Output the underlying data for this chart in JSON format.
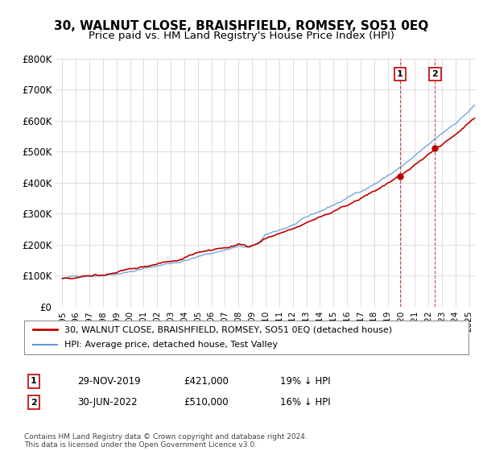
{
  "title": "30, WALNUT CLOSE, BRAISHFIELD, ROMSEY, SO51 0EQ",
  "subtitle": "Price paid vs. HM Land Registry's House Price Index (HPI)",
  "ylabel": "",
  "ylim": [
    0,
    800000
  ],
  "yticks": [
    0,
    100000,
    200000,
    300000,
    400000,
    500000,
    600000,
    700000,
    800000
  ],
  "ytick_labels": [
    "£0",
    "£100K",
    "£200K",
    "£300K",
    "£400K",
    "£500K",
    "£600K",
    "£700K",
    "£800K"
  ],
  "hpi_color": "#5b9bd5",
  "price_color": "#c00000",
  "marker1_date": 2019.91,
  "marker1_value": 421000,
  "marker1_label": "1",
  "marker2_date": 2022.5,
  "marker2_value": 510000,
  "marker2_label": "2",
  "legend_line1": "30, WALNUT CLOSE, BRAISHFIELD, ROMSEY, SO51 0EQ (detached house)",
  "legend_line2": "HPI: Average price, detached house, Test Valley",
  "table_row1": [
    "1",
    "29-NOV-2019",
    "£421,000",
    "19% ↓ HPI"
  ],
  "table_row2": [
    "2",
    "30-JUN-2022",
    "£510,000",
    "16% ↓ HPI"
  ],
  "footnote": "Contains HM Land Registry data © Crown copyright and database right 2024.\nThis data is licensed under the Open Government Licence v3.0.",
  "background_color": "#ffffff",
  "plot_bg_color": "#ffffff",
  "grid_color": "#d0d0d0",
  "title_fontsize": 11,
  "subtitle_fontsize": 9.5
}
